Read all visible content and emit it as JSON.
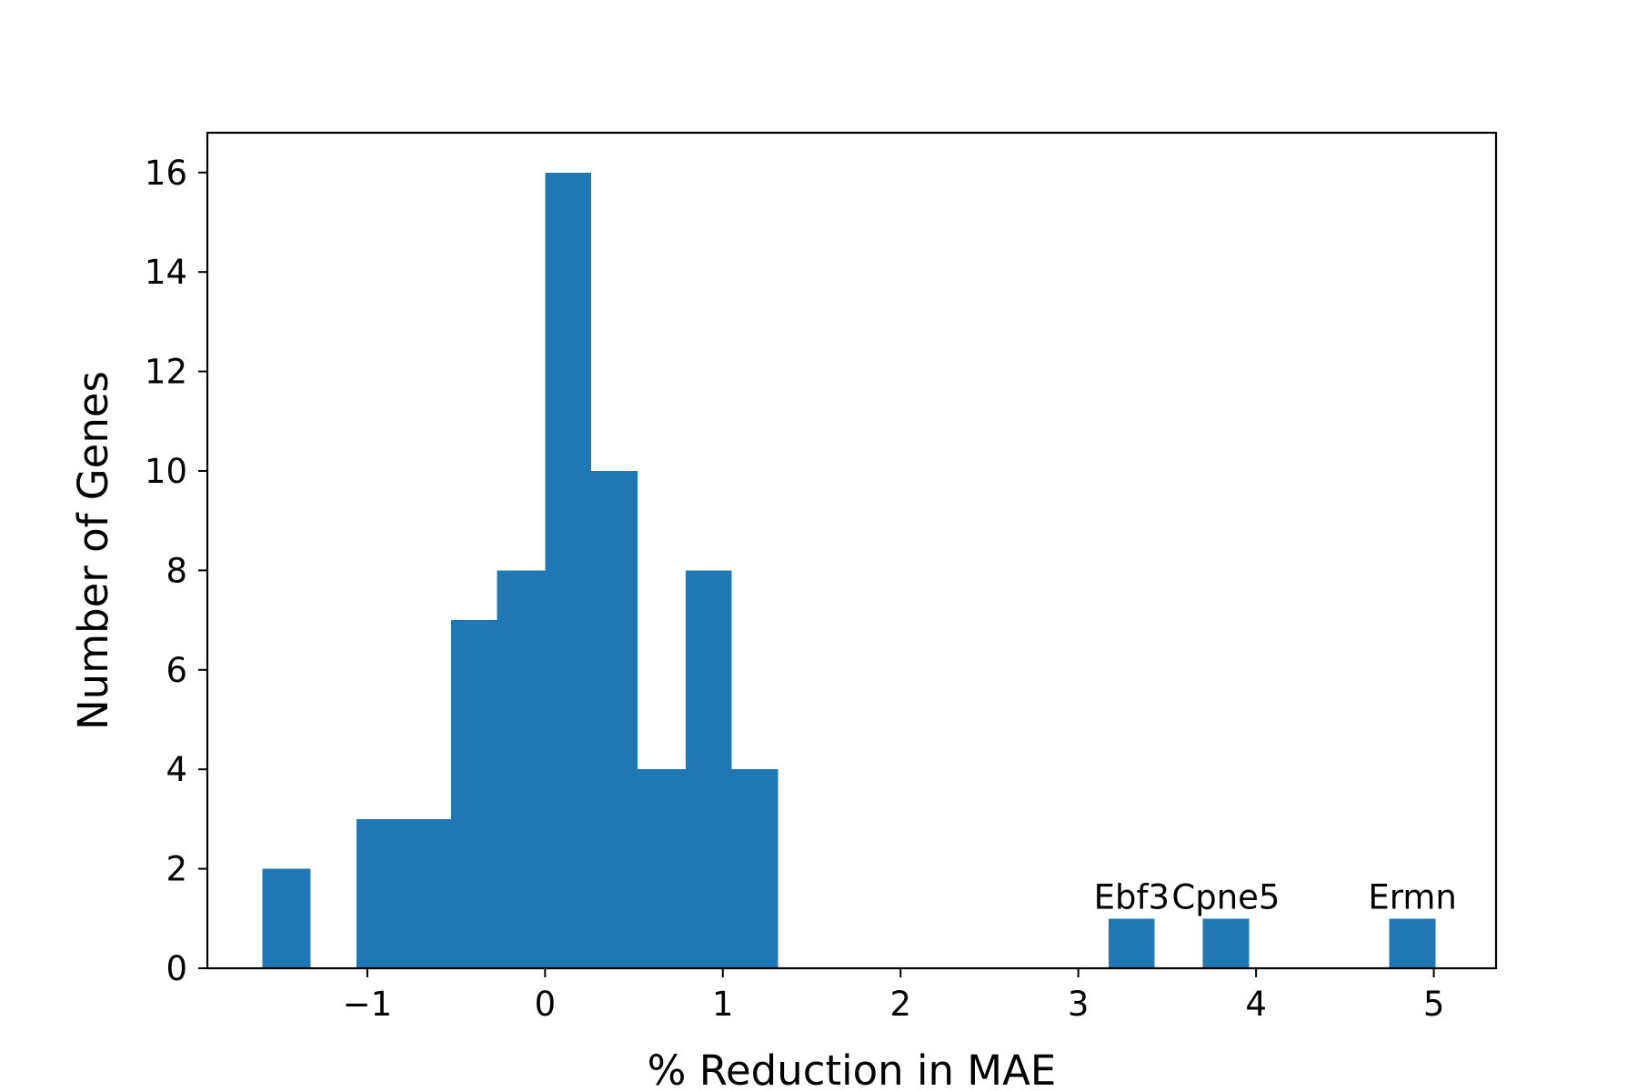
{
  "chart_data": {
    "type": "bar",
    "title": "",
    "xlabel": "% Reduction in MAE",
    "ylabel": "Number of Genes",
    "xlim": [
      -1.9,
      5.35
    ],
    "ylim": [
      0,
      16.8
    ],
    "xticks": [
      -1,
      0,
      1,
      2,
      3,
      4,
      5
    ],
    "xtick_labels": [
      "−1",
      "0",
      "1",
      "2",
      "3",
      "4",
      "5"
    ],
    "yticks": [
      0,
      2,
      4,
      6,
      8,
      10,
      12,
      14,
      16
    ],
    "ytick_labels": [
      "0",
      "2",
      "4",
      "6",
      "8",
      "10",
      "12",
      "14",
      "16"
    ],
    "grid": false,
    "bar_color": "#1f77b4",
    "bins": [
      {
        "x0": -1.59,
        "x1": -1.32,
        "count": 2
      },
      {
        "x0": -1.06,
        "x1": -0.8,
        "count": 3
      },
      {
        "x0": -0.8,
        "x1": -0.53,
        "count": 3
      },
      {
        "x0": -0.53,
        "x1": -0.27,
        "count": 7
      },
      {
        "x0": -0.27,
        "x1": 0.0,
        "count": 8
      },
      {
        "x0": 0.0,
        "x1": 0.26,
        "count": 16
      },
      {
        "x0": 0.26,
        "x1": 0.52,
        "count": 10
      },
      {
        "x0": 0.52,
        "x1": 0.79,
        "count": 4
      },
      {
        "x0": 0.79,
        "x1": 1.05,
        "count": 8
      },
      {
        "x0": 1.05,
        "x1": 1.31,
        "count": 4
      },
      {
        "x0": 3.17,
        "x1": 3.43,
        "count": 1
      },
      {
        "x0": 3.7,
        "x1": 3.96,
        "count": 1
      },
      {
        "x0": 4.75,
        "x1": 5.01,
        "count": 1
      }
    ],
    "annotations": [
      {
        "text": "Ebf3",
        "x": 3.3,
        "y": 1.2
      },
      {
        "text": "Cpne5",
        "x": 3.83,
        "y": 1.2
      },
      {
        "text": "Ermn",
        "x": 4.88,
        "y": 1.2
      }
    ]
  }
}
